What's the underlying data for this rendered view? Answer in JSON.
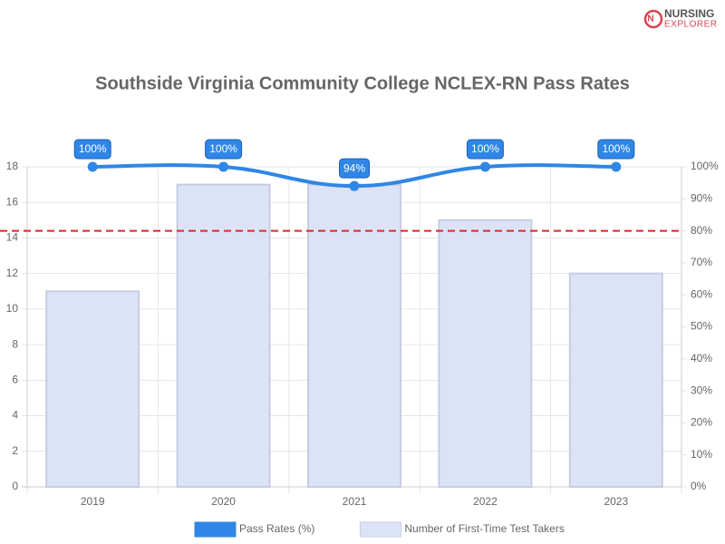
{
  "logo": {
    "line1": "NURSING",
    "line2": "EXPLORER"
  },
  "chart_data": {
    "type": "combo",
    "title": "Southside Virginia Community College NCLEX-RN Pass Rates",
    "categories": [
      "2019",
      "2020",
      "2021",
      "2022",
      "2023"
    ],
    "series": [
      {
        "name": "Pass Rates (%)",
        "type": "line",
        "axis": "y2",
        "color": "#2f86e6",
        "values": [
          100,
          100,
          94,
          100,
          100
        ],
        "value_labels": [
          "100%",
          "100%",
          "94%",
          "100%",
          "100%"
        ]
      },
      {
        "name": "Number of First-Time Test Takers",
        "type": "bar",
        "axis": "y",
        "color": "#dce3f6",
        "values": [
          11,
          17,
          17,
          15,
          12
        ]
      }
    ],
    "ylim": [
      0,
      18
    ],
    "yticks": [
      0,
      2,
      4,
      6,
      8,
      10,
      12,
      14,
      16,
      18
    ],
    "y2lim": [
      0,
      100
    ],
    "y2ticks": [
      {
        "value": 0,
        "label": "0%"
      },
      {
        "value": 10,
        "label": "10%"
      },
      {
        "value": 20,
        "label": "20%"
      },
      {
        "value": 30,
        "label": "30%"
      },
      {
        "value": 40,
        "label": "40%"
      },
      {
        "value": 50,
        "label": "50%"
      },
      {
        "value": 60,
        "label": "60%"
      },
      {
        "value": 70,
        "label": "70%"
      },
      {
        "value": 80,
        "label": "80%"
      },
      {
        "value": 90,
        "label": "90%"
      },
      {
        "value": 100,
        "label": "100%"
      }
    ],
    "reference_line": {
      "value": 80,
      "axis": "y2",
      "color": "#e3242b"
    },
    "grid": true,
    "legend": "bottom"
  }
}
